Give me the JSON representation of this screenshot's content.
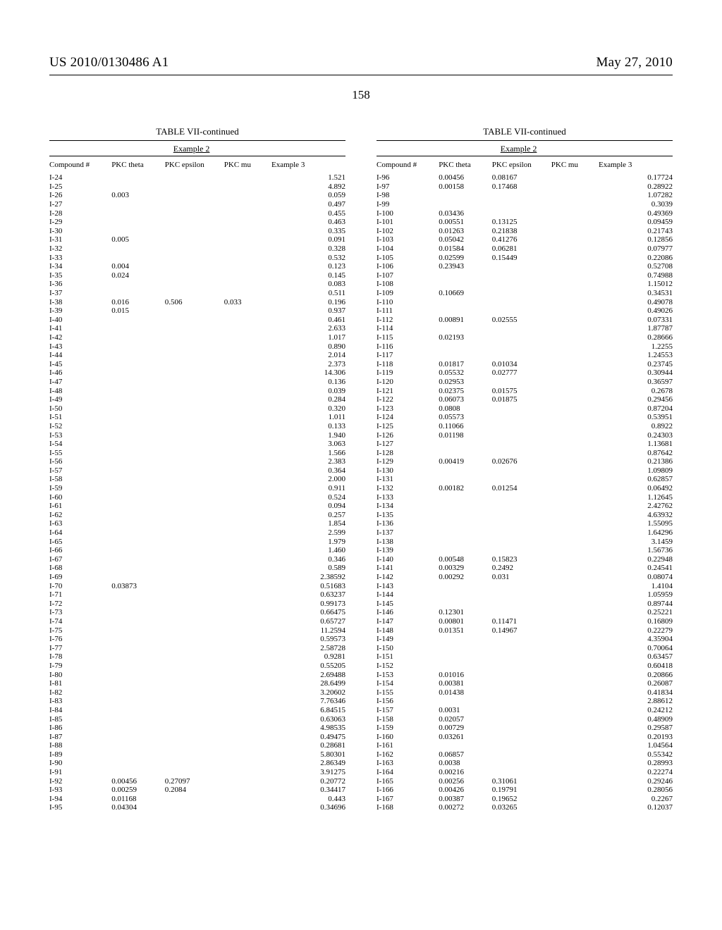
{
  "header": {
    "left": "US 2010/0130486 A1",
    "right": "May 27, 2010"
  },
  "page_number": "158",
  "tables": {
    "title": "TABLE VII-continued",
    "group_label": "Example 2",
    "columns": [
      "Compound #",
      "PKC theta",
      "PKC epsilon",
      "PKC mu",
      "Example 3"
    ],
    "left_rows": [
      [
        "I-24",
        "",
        "",
        "",
        "1.521"
      ],
      [
        "I-25",
        "",
        "",
        "",
        "4.892"
      ],
      [
        "I-26",
        "0.003",
        "",
        "",
        "0.059"
      ],
      [
        "I-27",
        "",
        "",
        "",
        "0.497"
      ],
      [
        "I-28",
        "",
        "",
        "",
        "0.455"
      ],
      [
        "I-29",
        "",
        "",
        "",
        "0.463"
      ],
      [
        "I-30",
        "",
        "",
        "",
        "0.335"
      ],
      [
        "I-31",
        "0.005",
        "",
        "",
        "0.091"
      ],
      [
        "I-32",
        "",
        "",
        "",
        "0.328"
      ],
      [
        "I-33",
        "",
        "",
        "",
        "0.532"
      ],
      [
        "I-34",
        "0.004",
        "",
        "",
        "0.123"
      ],
      [
        "I-35",
        "0.024",
        "",
        "",
        "0.145"
      ],
      [
        "I-36",
        "",
        "",
        "",
        "0.083"
      ],
      [
        "I-37",
        "",
        "",
        "",
        "0.511"
      ],
      [
        "I-38",
        "0.016",
        "0.506",
        "0.033",
        "0.196"
      ],
      [
        "I-39",
        "0.015",
        "",
        "",
        "0.937"
      ],
      [
        "I-40",
        "",
        "",
        "",
        "0.461"
      ],
      [
        "I-41",
        "",
        "",
        "",
        "2.633"
      ],
      [
        "I-42",
        "",
        "",
        "",
        "1.017"
      ],
      [
        "I-43",
        "",
        "",
        "",
        "0.890"
      ],
      [
        "I-44",
        "",
        "",
        "",
        "2.014"
      ],
      [
        "I-45",
        "",
        "",
        "",
        "2.373"
      ],
      [
        "I-46",
        "",
        "",
        "",
        "14.306"
      ],
      [
        "I-47",
        "",
        "",
        "",
        "0.136"
      ],
      [
        "I-48",
        "",
        "",
        "",
        "0.039"
      ],
      [
        "I-49",
        "",
        "",
        "",
        "0.284"
      ],
      [
        "I-50",
        "",
        "",
        "",
        "0.320"
      ],
      [
        "I-51",
        "",
        "",
        "",
        "1.011"
      ],
      [
        "I-52",
        "",
        "",
        "",
        "0.133"
      ],
      [
        "I-53",
        "",
        "",
        "",
        "1.940"
      ],
      [
        "I-54",
        "",
        "",
        "",
        "3.063"
      ],
      [
        "I-55",
        "",
        "",
        "",
        "1.566"
      ],
      [
        "I-56",
        "",
        "",
        "",
        "2.383"
      ],
      [
        "I-57",
        "",
        "",
        "",
        "0.364"
      ],
      [
        "I-58",
        "",
        "",
        "",
        "2.000"
      ],
      [
        "I-59",
        "",
        "",
        "",
        "0.911"
      ],
      [
        "I-60",
        "",
        "",
        "",
        "0.524"
      ],
      [
        "I-61",
        "",
        "",
        "",
        "0.094"
      ],
      [
        "I-62",
        "",
        "",
        "",
        "0.257"
      ],
      [
        "I-63",
        "",
        "",
        "",
        "1.854"
      ],
      [
        "I-64",
        "",
        "",
        "",
        "2.599"
      ],
      [
        "I-65",
        "",
        "",
        "",
        "1.979"
      ],
      [
        "I-66",
        "",
        "",
        "",
        "1.460"
      ],
      [
        "I-67",
        "",
        "",
        "",
        "0.346"
      ],
      [
        "I-68",
        "",
        "",
        "",
        "0.589"
      ],
      [
        "I-69",
        "",
        "",
        "",
        "2.38592"
      ],
      [
        "I-70",
        "0.03873",
        "",
        "",
        "0.51683"
      ],
      [
        "I-71",
        "",
        "",
        "",
        "0.63237"
      ],
      [
        "I-72",
        "",
        "",
        "",
        "0.99173"
      ],
      [
        "I-73",
        "",
        "",
        "",
        "0.66475"
      ],
      [
        "I-74",
        "",
        "",
        "",
        "0.65727"
      ],
      [
        "I-75",
        "",
        "",
        "",
        "11.2594"
      ],
      [
        "I-76",
        "",
        "",
        "",
        "0.59573"
      ],
      [
        "I-77",
        "",
        "",
        "",
        "2.58728"
      ],
      [
        "I-78",
        "",
        "",
        "",
        "0.9281"
      ],
      [
        "I-79",
        "",
        "",
        "",
        "0.55205"
      ],
      [
        "I-80",
        "",
        "",
        "",
        "2.69488"
      ],
      [
        "I-81",
        "",
        "",
        "",
        "28.6499"
      ],
      [
        "I-82",
        "",
        "",
        "",
        "3.20602"
      ],
      [
        "I-83",
        "",
        "",
        "",
        "7.76346"
      ],
      [
        "I-84",
        "",
        "",
        "",
        "6.84515"
      ],
      [
        "I-85",
        "",
        "",
        "",
        "0.63063"
      ],
      [
        "I-86",
        "",
        "",
        "",
        "4.98535"
      ],
      [
        "I-87",
        "",
        "",
        "",
        "0.49475"
      ],
      [
        "I-88",
        "",
        "",
        "",
        "0.28681"
      ],
      [
        "I-89",
        "",
        "",
        "",
        "5.80301"
      ],
      [
        "I-90",
        "",
        "",
        "",
        "2.86349"
      ],
      [
        "I-91",
        "",
        "",
        "",
        "3.91275"
      ],
      [
        "I-92",
        "0.00456",
        "0.27097",
        "",
        "0.20772"
      ],
      [
        "I-93",
        "0.00259",
        "0.2084",
        "",
        "0.34417"
      ],
      [
        "I-94",
        "0.01168",
        "",
        "",
        "0.443"
      ],
      [
        "I-95",
        "0.04304",
        "",
        "",
        "0.34696"
      ]
    ],
    "right_rows": [
      [
        "I-96",
        "0.00456",
        "0.08167",
        "",
        "0.17724"
      ],
      [
        "I-97",
        "0.00158",
        "0.17468",
        "",
        "0.28922"
      ],
      [
        "I-98",
        "",
        "",
        "",
        "1.07282"
      ],
      [
        "I-99",
        "",
        "",
        "",
        "0.3039"
      ],
      [
        "I-100",
        "0.03436",
        "",
        "",
        "0.49369"
      ],
      [
        "I-101",
        "0.00551",
        "0.13125",
        "",
        "0.09459"
      ],
      [
        "I-102",
        "0.01263",
        "0.21838",
        "",
        "0.21743"
      ],
      [
        "I-103",
        "0.05042",
        "0.41276",
        "",
        "0.12856"
      ],
      [
        "I-104",
        "0.01584",
        "0.06281",
        "",
        "0.07977"
      ],
      [
        "I-105",
        "0.02599",
        "0.15449",
        "",
        "0.22086"
      ],
      [
        "I-106",
        "0.23943",
        "",
        "",
        "0.52708"
      ],
      [
        "I-107",
        "",
        "",
        "",
        "0.74988"
      ],
      [
        "I-108",
        "",
        "",
        "",
        "1.15012"
      ],
      [
        "I-109",
        "0.10669",
        "",
        "",
        "0.34531"
      ],
      [
        "I-110",
        "",
        "",
        "",
        "0.49078"
      ],
      [
        "I-111",
        "",
        "",
        "",
        "0.49026"
      ],
      [
        "I-112",
        "0.00891",
        "0.02555",
        "",
        "0.07331"
      ],
      [
        "I-114",
        "",
        "",
        "",
        "1.87787"
      ],
      [
        "I-115",
        "0.02193",
        "",
        "",
        "0.28666"
      ],
      [
        "I-116",
        "",
        "",
        "",
        "1.2255"
      ],
      [
        "I-117",
        "",
        "",
        "",
        "1.24553"
      ],
      [
        "I-118",
        "0.01817",
        "0.01034",
        "",
        "0.23745"
      ],
      [
        "I-119",
        "0.05532",
        "0.02777",
        "",
        "0.30944"
      ],
      [
        "I-120",
        "0.02953",
        "",
        "",
        "0.36597"
      ],
      [
        "I-121",
        "0.02375",
        "0.01575",
        "",
        "0.2678"
      ],
      [
        "I-122",
        "0.06073",
        "0.01875",
        "",
        "0.29456"
      ],
      [
        "I-123",
        "0.0808",
        "",
        "",
        "0.87204"
      ],
      [
        "I-124",
        "0.05573",
        "",
        "",
        "0.53951"
      ],
      [
        "I-125",
        "0.11066",
        "",
        "",
        "0.8922"
      ],
      [
        "I-126",
        "0.01198",
        "",
        "",
        "0.24303"
      ],
      [
        "I-127",
        "",
        "",
        "",
        "1.13681"
      ],
      [
        "I-128",
        "",
        "",
        "",
        "0.87642"
      ],
      [
        "I-129",
        "0.00419",
        "0.02676",
        "",
        "0.21386"
      ],
      [
        "I-130",
        "",
        "",
        "",
        "1.09809"
      ],
      [
        "I-131",
        "",
        "",
        "",
        "0.62857"
      ],
      [
        "I-132",
        "0.00182",
        "0.01254",
        "",
        "0.06492"
      ],
      [
        "I-133",
        "",
        "",
        "",
        "1.12645"
      ],
      [
        "I-134",
        "",
        "",
        "",
        "2.42762"
      ],
      [
        "I-135",
        "",
        "",
        "",
        "4.63932"
      ],
      [
        "I-136",
        "",
        "",
        "",
        "1.55095"
      ],
      [
        "I-137",
        "",
        "",
        "",
        "1.64296"
      ],
      [
        "I-138",
        "",
        "",
        "",
        "3.1459"
      ],
      [
        "I-139",
        "",
        "",
        "",
        "1.56736"
      ],
      [
        "I-140",
        "0.00548",
        "0.15823",
        "",
        "0.22948"
      ],
      [
        "I-141",
        "0.00329",
        "0.2492",
        "",
        "0.24541"
      ],
      [
        "I-142",
        "0.00292",
        "0.031",
        "",
        "0.08074"
      ],
      [
        "I-143",
        "",
        "",
        "",
        "1.4104"
      ],
      [
        "I-144",
        "",
        "",
        "",
        "1.05959"
      ],
      [
        "I-145",
        "",
        "",
        "",
        "0.89744"
      ],
      [
        "I-146",
        "0.12301",
        "",
        "",
        "0.25221"
      ],
      [
        "I-147",
        "0.00801",
        "0.11471",
        "",
        "0.16809"
      ],
      [
        "I-148",
        "0.01351",
        "0.14967",
        "",
        "0.22279"
      ],
      [
        "I-149",
        "",
        "",
        "",
        "4.35904"
      ],
      [
        "I-150",
        "",
        "",
        "",
        "0.70064"
      ],
      [
        "I-151",
        "",
        "",
        "",
        "0.63457"
      ],
      [
        "I-152",
        "",
        "",
        "",
        "0.60418"
      ],
      [
        "I-153",
        "0.01016",
        "",
        "",
        "0.20866"
      ],
      [
        "I-154",
        "0.00381",
        "",
        "",
        "0.26087"
      ],
      [
        "I-155",
        "0.01438",
        "",
        "",
        "0.41834"
      ],
      [
        "I-156",
        "",
        "",
        "",
        "2.88612"
      ],
      [
        "I-157",
        "0.0031",
        "",
        "",
        "0.24212"
      ],
      [
        "I-158",
        "0.02057",
        "",
        "",
        "0.48909"
      ],
      [
        "I-159",
        "0.00729",
        "",
        "",
        "0.29587"
      ],
      [
        "I-160",
        "0.03261",
        "",
        "",
        "0.20193"
      ],
      [
        "I-161",
        "",
        "",
        "",
        "1.04564"
      ],
      [
        "I-162",
        "0.06857",
        "",
        "",
        "0.55342"
      ],
      [
        "I-163",
        "0.0038",
        "",
        "",
        "0.28993"
      ],
      [
        "I-164",
        "0.00216",
        "",
        "",
        "0.22274"
      ],
      [
        "I-165",
        "0.00256",
        "0.31061",
        "",
        "0.29246"
      ],
      [
        "I-166",
        "0.00426",
        "0.19791",
        "",
        "0.28056"
      ],
      [
        "I-167",
        "0.00387",
        "0.19652",
        "",
        "0.2267"
      ],
      [
        "I-168",
        "0.00272",
        "0.03265",
        "",
        "0.12037"
      ]
    ]
  }
}
